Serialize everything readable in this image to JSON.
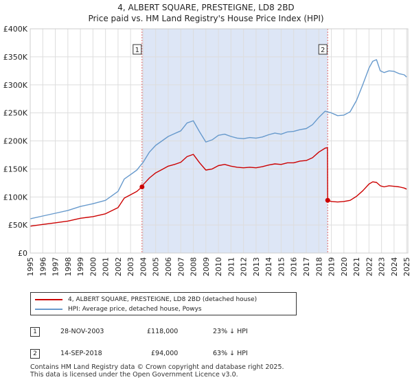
{
  "title_line1": "4, ALBERT SQUARE, PRESTEIGNE, LD8 2BD",
  "title_line2": "Price paid vs. HM Land Registry's House Price Index (HPI)",
  "colors": {
    "property": "#cc0000",
    "hpi": "#6699cc",
    "shade": "#dde6f6",
    "marker_line": "#e06666"
  },
  "legend": {
    "property_label": "4, ALBERT SQUARE, PRESTEIGNE, LD8 2BD (detached house)",
    "hpi_label": "HPI: Average price, detached house, Powys"
  },
  "transactions": [
    {
      "id": "1",
      "date": "28-NOV-2003",
      "price": "£118,000",
      "hpi_diff": "23% ↓ HPI"
    },
    {
      "id": "2",
      "date": "14-SEP-2018",
      "price": "£94,000",
      "hpi_diff": "63% ↓ HPI"
    }
  ],
  "footer": {
    "line1": "Contains HM Land Registry data © Crown copyright and database right 2025.",
    "line2": "This data is licensed under the Open Government Licence v3.0."
  },
  "chart_data": {
    "type": "line",
    "xlim": [
      1995,
      2025.1
    ],
    "ylim": [
      0,
      400000
    ],
    "x_ticks": [
      1995,
      1996,
      1997,
      1998,
      1999,
      2000,
      2001,
      2002,
      2003,
      2004,
      2005,
      2006,
      2007,
      2008,
      2009,
      2010,
      2011,
      2012,
      2013,
      2014,
      2015,
      2016,
      2017,
      2018,
      2019,
      2020,
      2021,
      2022,
      2023,
      2024,
      2025
    ],
    "y_ticks": [
      0,
      50000,
      100000,
      150000,
      200000,
      250000,
      300000,
      350000,
      400000
    ],
    "y_tick_labels": [
      "£0",
      "£50K",
      "£100K",
      "£150K",
      "£200K",
      "£250K",
      "£300K",
      "£350K",
      "£400K"
    ],
    "grid": true,
    "shaded_region": [
      2003.91,
      2018.71
    ],
    "markers": [
      {
        "label": "1",
        "x": 2003.91,
        "y": 118000
      },
      {
        "label": "2",
        "x": 2018.71,
        "y": 94000
      }
    ],
    "series": [
      {
        "name": "HPI: Average price, detached house, Powys",
        "x": [
          1995,
          1996,
          1997,
          1998,
          1999,
          2000,
          2001,
          2002,
          2002.5,
          2003,
          2003.5,
          2004,
          2004.5,
          2005,
          2005.5,
          2006,
          2006.5,
          2007,
          2007.5,
          2008,
          2008.5,
          2009,
          2009.5,
          2010,
          2010.5,
          2011,
          2011.5,
          2012,
          2012.5,
          2013,
          2013.5,
          2014,
          2014.5,
          2015,
          2015.5,
          2016,
          2016.5,
          2017,
          2017.5,
          2018,
          2018.5,
          2019,
          2019.5,
          2020,
          2020.5,
          2021,
          2021.5,
          2022,
          2022.3,
          2022.6,
          2022.9,
          2023.2,
          2023.6,
          2024,
          2024.4,
          2024.8,
          2025
        ],
        "values": [
          61000,
          66000,
          71000,
          76000,
          83000,
          88000,
          94000,
          110000,
          132000,
          140000,
          148000,
          162000,
          180000,
          192000,
          200000,
          208000,
          213000,
          218000,
          232000,
          236000,
          216000,
          198000,
          202000,
          210000,
          212000,
          208000,
          205000,
          204000,
          206000,
          205000,
          207000,
          211000,
          214000,
          212000,
          216000,
          217000,
          220000,
          222000,
          229000,
          242000,
          253000,
          250000,
          245000,
          246000,
          252000,
          272000,
          300000,
          330000,
          342000,
          345000,
          325000,
          322000,
          325000,
          324000,
          320000,
          318000,
          314000
        ]
      },
      {
        "name": "4, ALBERT SQUARE, PRESTEIGNE, LD8 2BD (detached house)",
        "x": [
          1995,
          1996,
          1997,
          1998,
          1999,
          2000,
          2001,
          2002,
          2002.5,
          2003,
          2003.5,
          2003.91,
          2004,
          2004.5,
          2005,
          2005.5,
          2006,
          2006.5,
          2007,
          2007.5,
          2008,
          2008.5,
          2009,
          2009.5,
          2010,
          2010.5,
          2011,
          2011.5,
          2012,
          2012.5,
          2013,
          2013.5,
          2014,
          2014.5,
          2015,
          2015.5,
          2016,
          2016.5,
          2017,
          2017.5,
          2018,
          2018.5,
          2018.69,
          2018.71,
          2019,
          2019.5,
          2020,
          2020.5,
          2021,
          2021.5,
          2022,
          2022.3,
          2022.6,
          2022.9,
          2023.2,
          2023.6,
          2024,
          2024.4,
          2024.8,
          2025
        ],
        "values": [
          48000,
          51000,
          54000,
          57000,
          62000,
          65000,
          70000,
          81000,
          98000,
          104000,
          110000,
          118000,
          122000,
          134000,
          143000,
          149000,
          155000,
          158000,
          162000,
          172000,
          176000,
          161000,
          148000,
          150000,
          156000,
          158000,
          155000,
          153000,
          152000,
          153000,
          152000,
          154000,
          157000,
          159000,
          158000,
          161000,
          161000,
          164000,
          165000,
          170000,
          180000,
          187000,
          188000,
          94000,
          92000,
          91000,
          92000,
          94000,
          101000,
          111000,
          123000,
          127000,
          126000,
          120000,
          118000,
          120000,
          119000,
          118000,
          116000,
          114000
        ]
      }
    ]
  }
}
